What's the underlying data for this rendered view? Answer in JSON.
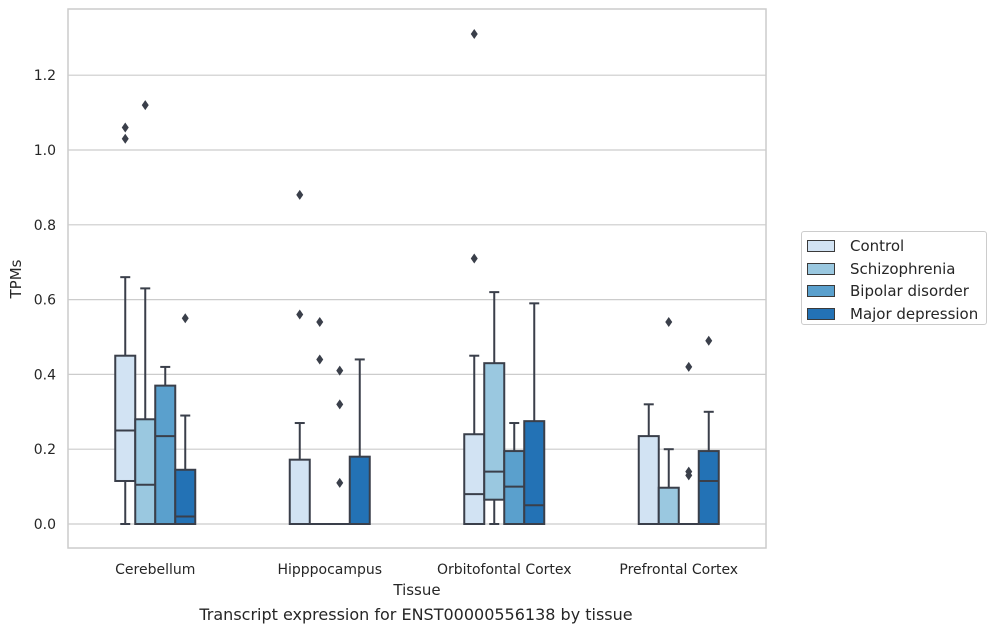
{
  "chart_data": {
    "type": "box",
    "title": "Transcript expression for ENST00000556138 by tissue",
    "xlabel": "Tissue",
    "ylabel": "TPMs",
    "ylim": [
      -0.065,
      1.38
    ],
    "yticks": [
      0.0,
      0.2,
      0.4,
      0.6,
      0.8,
      1.0,
      1.2
    ],
    "ytick_labels": [
      "0.0",
      "0.2",
      "0.4",
      "0.6",
      "0.8",
      "1.0",
      "1.2"
    ],
    "grid": true,
    "legend_position": "outside-right",
    "categories": [
      "Cerebellum",
      "Hipppocampus",
      "Orbitofontal Cortex",
      "Prefrontal Cortex"
    ],
    "series": [
      {
        "name": "Control",
        "color": "#d2e3f3",
        "boxes": [
          {
            "q1": 0.115,
            "median": 0.25,
            "q3": 0.45,
            "whisker_low": 0.0,
            "whisker_high": 0.66,
            "outliers": [
              1.03,
              1.06
            ]
          },
          {
            "q1": 0.0,
            "median": 0.0,
            "q3": 0.172,
            "whisker_low": 0.0,
            "whisker_high": 0.27,
            "outliers": [
              0.56,
              0.88
            ]
          },
          {
            "q1": 0.0,
            "median": 0.08,
            "q3": 0.24,
            "whisker_low": 0.0,
            "whisker_high": 0.45,
            "outliers": [
              0.71,
              1.31
            ]
          },
          {
            "q1": 0.0,
            "median": 0.0,
            "q3": 0.235,
            "whisker_low": 0.0,
            "whisker_high": 0.32,
            "outliers": []
          }
        ]
      },
      {
        "name": "Schizophrenia",
        "color": "#9ac8e0",
        "boxes": [
          {
            "q1": 0.0,
            "median": 0.105,
            "q3": 0.28,
            "whisker_low": 0.0,
            "whisker_high": 0.63,
            "outliers": [
              1.12
            ]
          },
          {
            "q1": 0.0,
            "median": 0.0,
            "q3": 0.0,
            "whisker_low": 0.0,
            "whisker_high": 0.0,
            "outliers": [
              0.44,
              0.54
            ]
          },
          {
            "q1": 0.065,
            "median": 0.14,
            "q3": 0.43,
            "whisker_low": 0.0,
            "whisker_high": 0.62,
            "outliers": []
          },
          {
            "q1": 0.0,
            "median": 0.0,
            "q3": 0.097,
            "whisker_low": 0.0,
            "whisker_high": 0.2,
            "outliers": [
              0.54
            ]
          }
        ]
      },
      {
        "name": "Bipolar disorder",
        "color": "#5aa0cd",
        "boxes": [
          {
            "q1": 0.0,
            "median": 0.235,
            "q3": 0.37,
            "whisker_low": 0.0,
            "whisker_high": 0.42,
            "outliers": []
          },
          {
            "q1": 0.0,
            "median": 0.0,
            "q3": 0.0,
            "whisker_low": 0.0,
            "whisker_high": 0.0,
            "outliers": [
              0.11,
              0.32,
              0.41
            ]
          },
          {
            "q1": 0.0,
            "median": 0.1,
            "q3": 0.195,
            "whisker_low": 0.0,
            "whisker_high": 0.27,
            "outliers": []
          },
          {
            "q1": 0.0,
            "median": 0.0,
            "q3": 0.0,
            "whisker_low": 0.0,
            "whisker_high": 0.0,
            "outliers": [
              0.13,
              0.14,
              0.42
            ]
          }
        ]
      },
      {
        "name": "Major depression",
        "color": "#2372b5",
        "boxes": [
          {
            "q1": 0.0,
            "median": 0.02,
            "q3": 0.145,
            "whisker_low": 0.0,
            "whisker_high": 0.29,
            "outliers": [
              0.55
            ]
          },
          {
            "q1": 0.0,
            "median": 0.0,
            "q3": 0.18,
            "whisker_low": 0.0,
            "whisker_high": 0.44,
            "outliers": []
          },
          {
            "q1": 0.0,
            "median": 0.05,
            "q3": 0.275,
            "whisker_low": 0.0,
            "whisker_high": 0.59,
            "outliers": []
          },
          {
            "q1": 0.0,
            "median": 0.115,
            "q3": 0.195,
            "whisker_low": 0.0,
            "whisker_high": 0.3,
            "outliers": [
              0.49
            ]
          }
        ]
      }
    ]
  }
}
